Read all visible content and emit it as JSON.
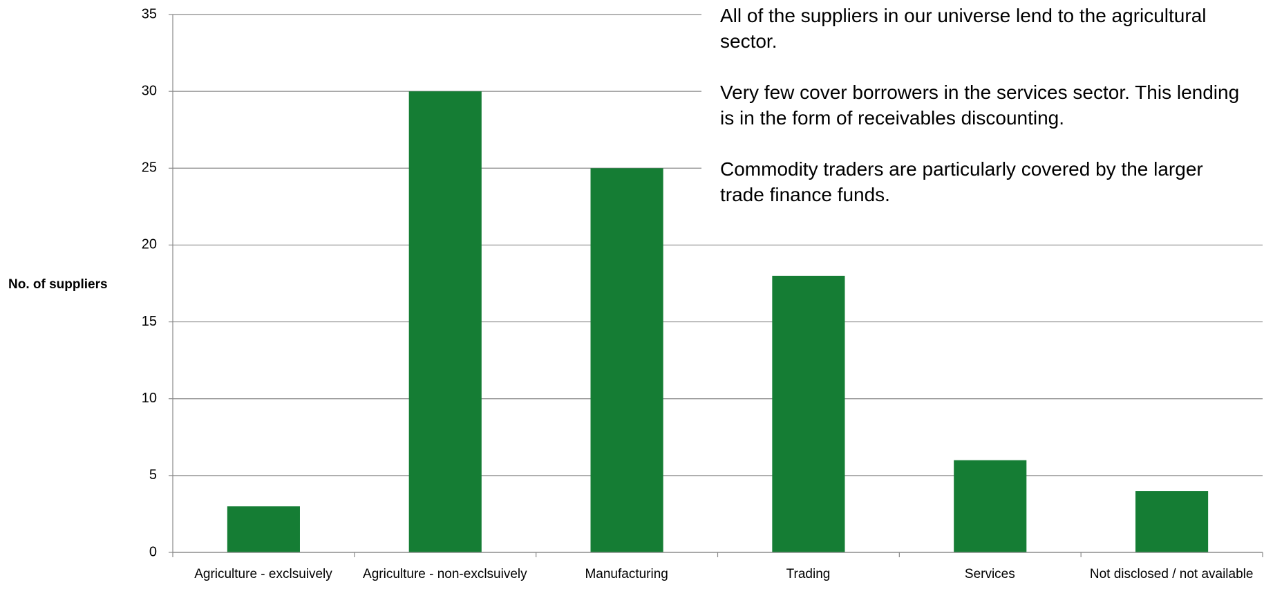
{
  "chart_data": {
    "type": "bar",
    "y_axis_label": "No. of suppliers",
    "categories": [
      "Agriculture - exclsuively",
      "Agriculture - non-exclsuively",
      "Manufacturing",
      "Trading",
      "Services",
      "Not disclosed / not available"
    ],
    "values": [
      3,
      30,
      25,
      18,
      6,
      4
    ],
    "color": "#157d34",
    "ylim": [
      0,
      35
    ],
    "yticks": [
      0,
      5,
      10,
      15,
      20,
      25,
      30,
      35
    ],
    "grid": true,
    "annotations": [
      "All of the suppliers in our universe lend to the agricultural sector.",
      "Very few cover borrowers in the services sector. This lending is in the form of receivables discounting.",
      "Commodity traders are particularly covered by the larger trade finance funds."
    ]
  }
}
